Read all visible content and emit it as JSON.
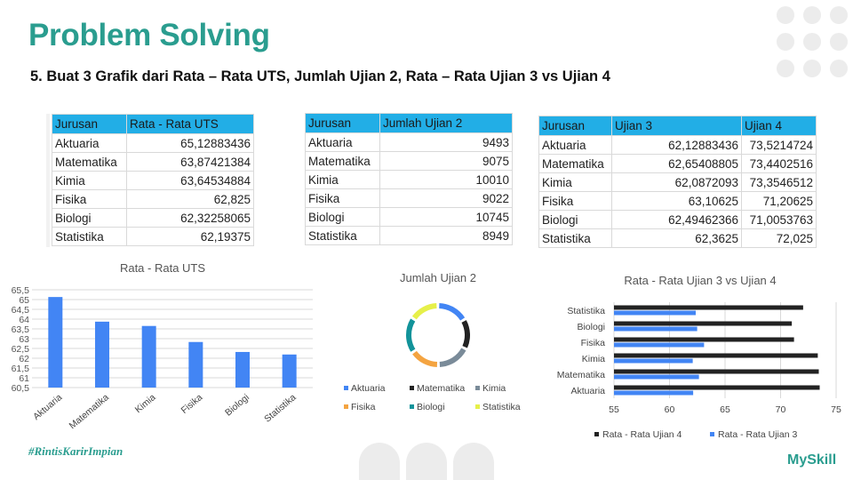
{
  "slide": {
    "title": "Problem Solving",
    "subtitle": "5.  Buat 3 Grafik dari Rata – Rata UTS, Jumlah Ujian 2, Rata – Rata Ujian 3 vs Ujian 4",
    "tagline": "#RintisKarirImpian",
    "logo": "MySkill"
  },
  "tables": {
    "uts": {
      "headers": [
        "Jurusan",
        "Rata - Rata UTS"
      ],
      "rows": [
        [
          "Aktuaria",
          "65,12883436"
        ],
        [
          "Matematika",
          "63,87421384"
        ],
        [
          "Kimia",
          "63,64534884"
        ],
        [
          "Fisika",
          "62,825"
        ],
        [
          "Biologi",
          "62,32258065"
        ],
        [
          "Statistika",
          "62,19375"
        ]
      ]
    },
    "ujian2": {
      "headers": [
        "Jurusan",
        "Jumlah Ujian 2"
      ],
      "rows": [
        [
          "Aktuaria",
          "9493"
        ],
        [
          "Matematika",
          "9075"
        ],
        [
          "Kimia",
          "10010"
        ],
        [
          "Fisika",
          "9022"
        ],
        [
          "Biologi",
          "10745"
        ],
        [
          "Statistika",
          "8949"
        ]
      ]
    },
    "ujian34": {
      "headers": [
        "Jurusan",
        "Ujian 3",
        "Ujian 4"
      ],
      "rows": [
        [
          "Aktuaria",
          "62,12883436",
          "73,5214724"
        ],
        [
          "Matematika",
          "62,65408805",
          "73,4402516"
        ],
        [
          "Kimia",
          "62,0872093",
          "73,3546512"
        ],
        [
          "Fisika",
          "63,10625",
          "71,20625"
        ],
        [
          "Biologi",
          "62,49462366",
          "71,0053763"
        ],
        [
          "Statistika",
          "62,3625",
          "72,025"
        ]
      ]
    }
  },
  "chart_data": [
    {
      "type": "bar",
      "title": "Rata - Rata UTS",
      "categories": [
        "Aktuaria",
        "Matematika",
        "Kimia",
        "Fisika",
        "Biologi",
        "Statistika"
      ],
      "values": [
        65.13,
        63.87,
        63.65,
        62.83,
        62.32,
        62.19
      ],
      "ylim": [
        60.5,
        65.5
      ],
      "yticks": [
        "60,5",
        "61",
        "61,5",
        "62",
        "62,5",
        "63",
        "63,5",
        "64",
        "64,5",
        "65",
        "65,5"
      ],
      "color": "#4285f4",
      "grid": true
    },
    {
      "type": "pie",
      "title": "Jumlah Ujian 2",
      "categories": [
        "Aktuaria",
        "Matematika",
        "Kimia",
        "Fisika",
        "Biologi",
        "Statistika"
      ],
      "values": [
        9493,
        9075,
        10010,
        9022,
        10745,
        8949
      ],
      "colors": [
        "#4285f4",
        "#222222",
        "#7a8b99",
        "#f4a441",
        "#12939a",
        "#e6f04a"
      ],
      "legend": "bottom"
    },
    {
      "type": "bar",
      "orientation": "horizontal",
      "title": "Rata - Rata Ujian 3 vs Ujian 4",
      "categories": [
        "Aktuaria",
        "Matematika",
        "Kimia",
        "Fisika",
        "Biologi",
        "Statistika"
      ],
      "series": [
        {
          "name": "Rata - Rata Ujian 4",
          "values": [
            73.52,
            73.44,
            73.35,
            71.21,
            71.01,
            72.03
          ],
          "color": "#222222"
        },
        {
          "name": "Rata - Rata Ujian 3",
          "values": [
            62.13,
            62.65,
            62.09,
            63.11,
            62.49,
            62.36
          ],
          "color": "#4285f4"
        }
      ],
      "xlim": [
        55,
        75
      ],
      "xticks": [
        "55",
        "60",
        "65",
        "70",
        "75"
      ],
      "legend": "bottom",
      "grid": true
    }
  ]
}
